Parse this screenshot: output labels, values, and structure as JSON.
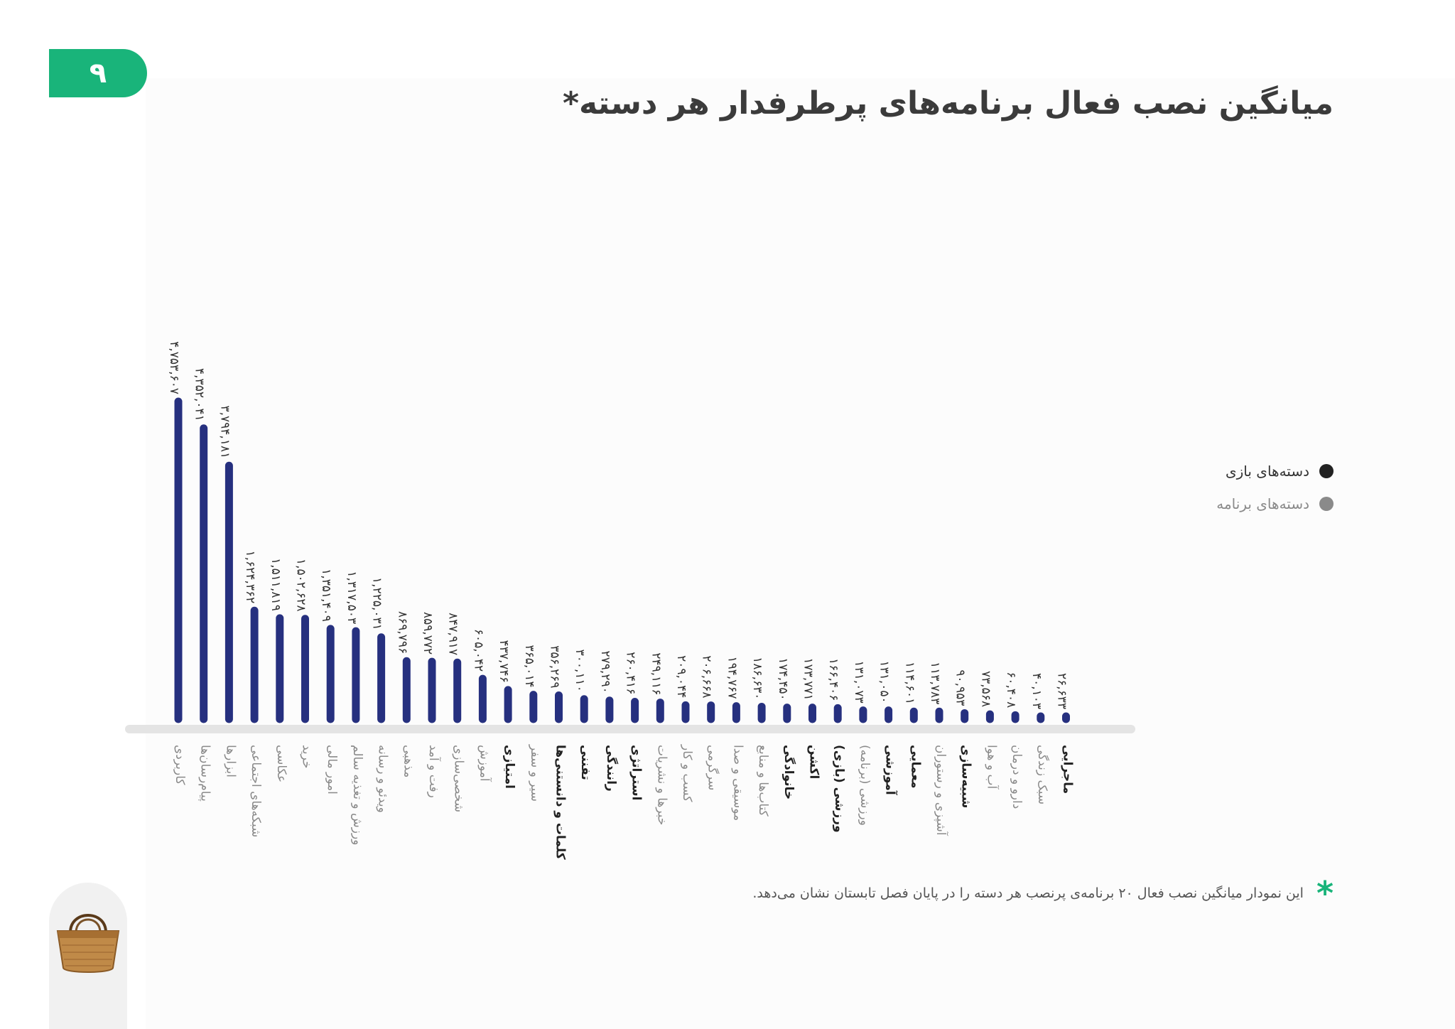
{
  "page_number": "۹",
  "title": "میانگین نصب فعال برنامه‌های پرطرفدار هر دسته*",
  "legend": [
    {
      "label": "دسته‌های بازی",
      "color": "#222222"
    },
    {
      "label": "دسته‌های برنامه",
      "color": "#8a8a8a"
    }
  ],
  "footnote": {
    "marker": "*",
    "text": "این نمودار میانگین نصب فعال ۲۰ برنامه‌ی پرنصب هر دسته را در پایان فصل تابستان نشان می‌دهد."
  },
  "logo": {
    "icon": "basket-icon"
  },
  "colors": {
    "accent": "#19b47a",
    "bar": "#26307f",
    "game_label": "#222222",
    "app_label": "#8a8a8a"
  },
  "chart_data": {
    "type": "bar",
    "title": "میانگین نصب فعال برنامه‌های پرطرفدار هر دسته*",
    "xlabel": "",
    "ylabel": "",
    "ylim": [
      0,
      4800000
    ],
    "grid": false,
    "legend_position": "right",
    "categories": [
      {
        "label": "کاربردی",
        "group": "app"
      },
      {
        "label": "پیام‌رسان‌ها",
        "group": "app"
      },
      {
        "label": "ابزارها",
        "group": "app"
      },
      {
        "label": "شبکه‌های اجتماعی",
        "group": "app"
      },
      {
        "label": "عکاسی",
        "group": "app"
      },
      {
        "label": "خرید",
        "group": "app"
      },
      {
        "label": "امور مالی",
        "group": "app"
      },
      {
        "label": "ورزش و تغذیه سالم",
        "group": "app"
      },
      {
        "label": "ویدئو و رسانه",
        "group": "app"
      },
      {
        "label": "مذهبی",
        "group": "app"
      },
      {
        "label": "رفت و آمد",
        "group": "app"
      },
      {
        "label": "شخصی‌سازی",
        "group": "app"
      },
      {
        "label": "آموزش",
        "group": "app"
      },
      {
        "label": "امتیازی",
        "group": "game"
      },
      {
        "label": "سیر و سفر",
        "group": "app"
      },
      {
        "label": "کلمات و دانستنی‌ها",
        "group": "game"
      },
      {
        "label": "تفننی",
        "group": "game"
      },
      {
        "label": "رانندگی",
        "group": "game"
      },
      {
        "label": "استراتژی",
        "group": "game"
      },
      {
        "label": "خبرها و نشریات",
        "group": "app"
      },
      {
        "label": "کسب و کار",
        "group": "app"
      },
      {
        "label": "سرگرمی",
        "group": "app"
      },
      {
        "label": "موسیقی و صدا",
        "group": "app"
      },
      {
        "label": "کتاب‌ها و منابع",
        "group": "app"
      },
      {
        "label": "خانوادگی",
        "group": "game"
      },
      {
        "label": "اکشن",
        "group": "game"
      },
      {
        "label": "ورزشی (بازی)",
        "group": "game"
      },
      {
        "label": "ورزشی (برنامه)",
        "group": "app"
      },
      {
        "label": "آموزشی",
        "group": "game"
      },
      {
        "label": "معمایی",
        "group": "game"
      },
      {
        "label": "آشپزی و رستوران",
        "group": "app"
      },
      {
        "label": "شبیه‌سازی",
        "group": "game"
      },
      {
        "label": "آب و هوا",
        "group": "app"
      },
      {
        "label": "دارو و درمان",
        "group": "app"
      },
      {
        "label": "سبک زندگی",
        "group": "app"
      },
      {
        "label": "ماجرایی",
        "group": "game"
      }
    ],
    "values": [
      4753607,
      4352041,
      3794181,
      1624362,
      1511819,
      1502628,
      1351409,
      1317503,
      1225031,
      869796,
      859772,
      847917,
      605042,
      437746,
      365014,
      356269,
      300110,
      279290,
      260416,
      249116,
      209044,
      206668,
      194767,
      186630,
      174450,
      173771,
      166406,
      131073,
      131050,
      114601,
      113783,
      90953,
      73568,
      60408,
      40103,
      26633
    ],
    "value_labels": [
      "۴,۷۵۳,۶۰۷",
      "۴,۳۵۲,۰۴۱",
      "۳,۷۹۴,۱۸۱",
      "۱,۶۲۴,۳۶۲",
      "۱,۵۱۱,۸۱۹",
      "۱,۵۰۲,۶۲۸",
      "۱,۳۵۱,۴۰۹",
      "۱,۳۱۷,۵۰۳",
      "۱,۲۲۵,۰۳۱",
      "۸۶۹,۷۹۶",
      "۸۵۹,۷۷۲",
      "۸۴۷,۹۱۷",
      "۶۰۵,۰۴۲",
      "۴۳۷,۷۴۶",
      "۳۶۵,۰۱۴",
      "۳۵۶,۲۶۹",
      "۳۰۰,۱۱۰",
      "۲۷۹,۲۹۰",
      "۲۶۰,۴۱۶",
      "۲۴۹,۱۱۶",
      "۲۰۹,۰۴۴",
      "۲۰۶,۶۶۸",
      "۱۹۴,۷۶۷",
      "۱۸۶,۶۳۰",
      "۱۷۴,۴۵۰",
      "۱۷۳,۷۷۱",
      "۱۶۶,۴۰۶",
      "۱۳۱,۰۷۳",
      "۱۳۱,۰۵۰",
      "۱۱۴,۶۰۱",
      "۱۱۳,۷۸۳",
      "۹۰,۹۵۳",
      "۷۳,۵۶۸",
      "۶۰,۴۰۸",
      "۴۰,۱۰۳",
      "۲۶,۶۳۳"
    ]
  }
}
